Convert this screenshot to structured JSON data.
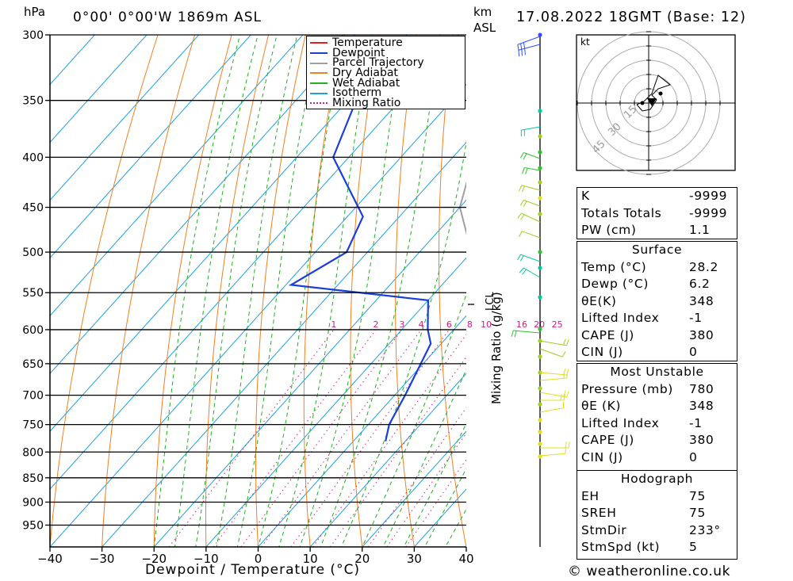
{
  "header": {
    "hpa_label": "hPa",
    "location": "0°00' 0°00'W 1869m ASL",
    "km_label": "km",
    "asl_label": "ASL",
    "datetime": "17.08.2022 18GMT (Base: 12)",
    "mixing_axis": "Mixing Ratio (g/kg)",
    "lcl_label": "LCL",
    "copyright": "© weatheronline.co.uk",
    "hodo_unit": "kt"
  },
  "chart_data": {
    "type": "line",
    "xlabel": "Dewpoint / Temperature (°C)",
    "ylabel": "hPa",
    "xlim": [
      -40,
      40
    ],
    "pressure_levels": [
      300,
      350,
      400,
      450,
      500,
      550,
      600,
      650,
      700,
      750,
      800,
      850,
      900,
      950
    ],
    "x_ticks": [
      -40,
      -30,
      -20,
      -10,
      0,
      10,
      20,
      30,
      40
    ],
    "mixing_ratio_labels": [
      "1",
      "2",
      "3",
      "4",
      "6",
      "8",
      "10",
      "16",
      "20",
      "25"
    ],
    "legend": [
      "Temperature",
      "Dewpoint",
      "Parcel Trajectory",
      "Dry Adiabat",
      "Wet Adiabat",
      "Isotherm",
      "Mixing Ratio"
    ],
    "series": [
      {
        "name": "Temperature",
        "color": "#e02020",
        "points": [
          [
            300,
            -43
          ],
          [
            350,
            -37
          ],
          [
            400,
            -26
          ],
          [
            450,
            -15
          ],
          [
            500,
            -6
          ],
          [
            550,
            0
          ],
          [
            600,
            7
          ],
          [
            650,
            13
          ],
          [
            700,
            20
          ],
          [
            750,
            25
          ],
          [
            780,
            28.2
          ]
        ]
      },
      {
        "name": "Dewpoint",
        "color": "#1a3fdc",
        "points": [
          [
            345,
            -59
          ],
          [
            400,
            -53
          ],
          [
            460,
            -37
          ],
          [
            500,
            -34
          ],
          [
            540,
            -39
          ],
          [
            560,
            -10
          ],
          [
            600,
            -5
          ],
          [
            620,
            -2
          ],
          [
            700,
            2
          ],
          [
            750,
            4
          ],
          [
            780,
            6.2
          ]
        ]
      },
      {
        "name": "Parcel Trajectory",
        "color": "#a0a0a0",
        "points": [
          [
            370,
            -30
          ],
          [
            450,
            -20
          ],
          [
            500,
            -10
          ],
          [
            560,
            1
          ],
          [
            650,
            11
          ],
          [
            700,
            18
          ],
          [
            750,
            25
          ],
          [
            780,
            28.2
          ]
        ]
      }
    ],
    "wind_colors": [
      "#3050ff",
      "#00c8a0",
      "#30c030",
      "#a0d020",
      "#e0e020"
    ]
  },
  "hodograph": {
    "unit": "kt",
    "ring_labels": [
      "15",
      "30",
      "45"
    ]
  },
  "indices": [
    {
      "label": "K",
      "value": "-9999"
    },
    {
      "label": "Totals Totals",
      "value": "-9999"
    },
    {
      "label": "PW (cm)",
      "value": "1.1"
    }
  ],
  "surface": {
    "title": "Surface",
    "rows": [
      {
        "label": "Temp (°C)",
        "value": "28.2"
      },
      {
        "label": "Dewp (°C)",
        "value": "6.2"
      },
      {
        "label": "θE(K)",
        "value": "348"
      },
      {
        "label": "Lifted Index",
        "value": "-1"
      },
      {
        "label": "CAPE (J)",
        "value": "380"
      },
      {
        "label": "CIN (J)",
        "value": "0"
      }
    ]
  },
  "most_unstable": {
    "title": "Most Unstable",
    "rows": [
      {
        "label": "Pressure (mb)",
        "value": "780"
      },
      {
        "label": "θE (K)",
        "value": "348"
      },
      {
        "label": "Lifted Index",
        "value": "-1"
      },
      {
        "label": "CAPE (J)",
        "value": "380"
      },
      {
        "label": "CIN (J)",
        "value": "0"
      }
    ]
  },
  "hodograph_box": {
    "title": "Hodograph",
    "rows": [
      {
        "label": "EH",
        "value": "75"
      },
      {
        "label": "SREH",
        "value": "75"
      },
      {
        "label": "StmDir",
        "value": "233°"
      },
      {
        "label": "StmSpd (kt)",
        "value": "5"
      }
    ]
  }
}
